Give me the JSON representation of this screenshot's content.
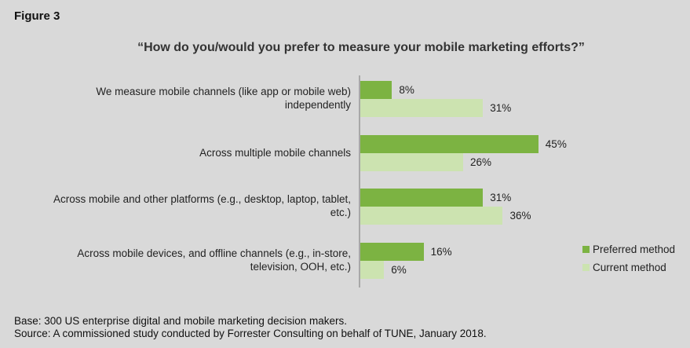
{
  "figure_label": "Figure 3",
  "footer": {
    "base": "Base: 300 US enterprise digital and mobile marketing decision makers.",
    "source": "Source: A commissioned study conducted by Forrester Consulting on behalf of TUNE, January 2018."
  },
  "chart_data": {
    "type": "bar",
    "orientation": "horizontal",
    "title": "“How do you/would you prefer to measure your mobile marketing efforts?”",
    "categories": [
      [
        "We measure mobile channels (like app or mobile web)",
        "independently"
      ],
      [
        "Across multiple mobile channels"
      ],
      [
        "Across mobile and other platforms (e.g., desktop, laptop, tablet,",
        "etc.)"
      ],
      [
        "Across mobile devices, and offline channels (e.g., in-store,",
        "television, OOH, etc.)"
      ]
    ],
    "series": [
      {
        "name": "Preferred method",
        "color": "#7cb342",
        "values": [
          8,
          45,
          31,
          16
        ],
        "labels": [
          "8%",
          "45%",
          "31%",
          "16%"
        ]
      },
      {
        "name": "Current method",
        "color": "#cce3b0",
        "values": [
          31,
          26,
          36,
          6
        ],
        "labels": [
          "31%",
          "26%",
          "36%",
          "6%"
        ]
      }
    ],
    "unit": "%",
    "xlim": [
      0,
      80
    ],
    "grid": false,
    "legend": "bottom-right"
  }
}
